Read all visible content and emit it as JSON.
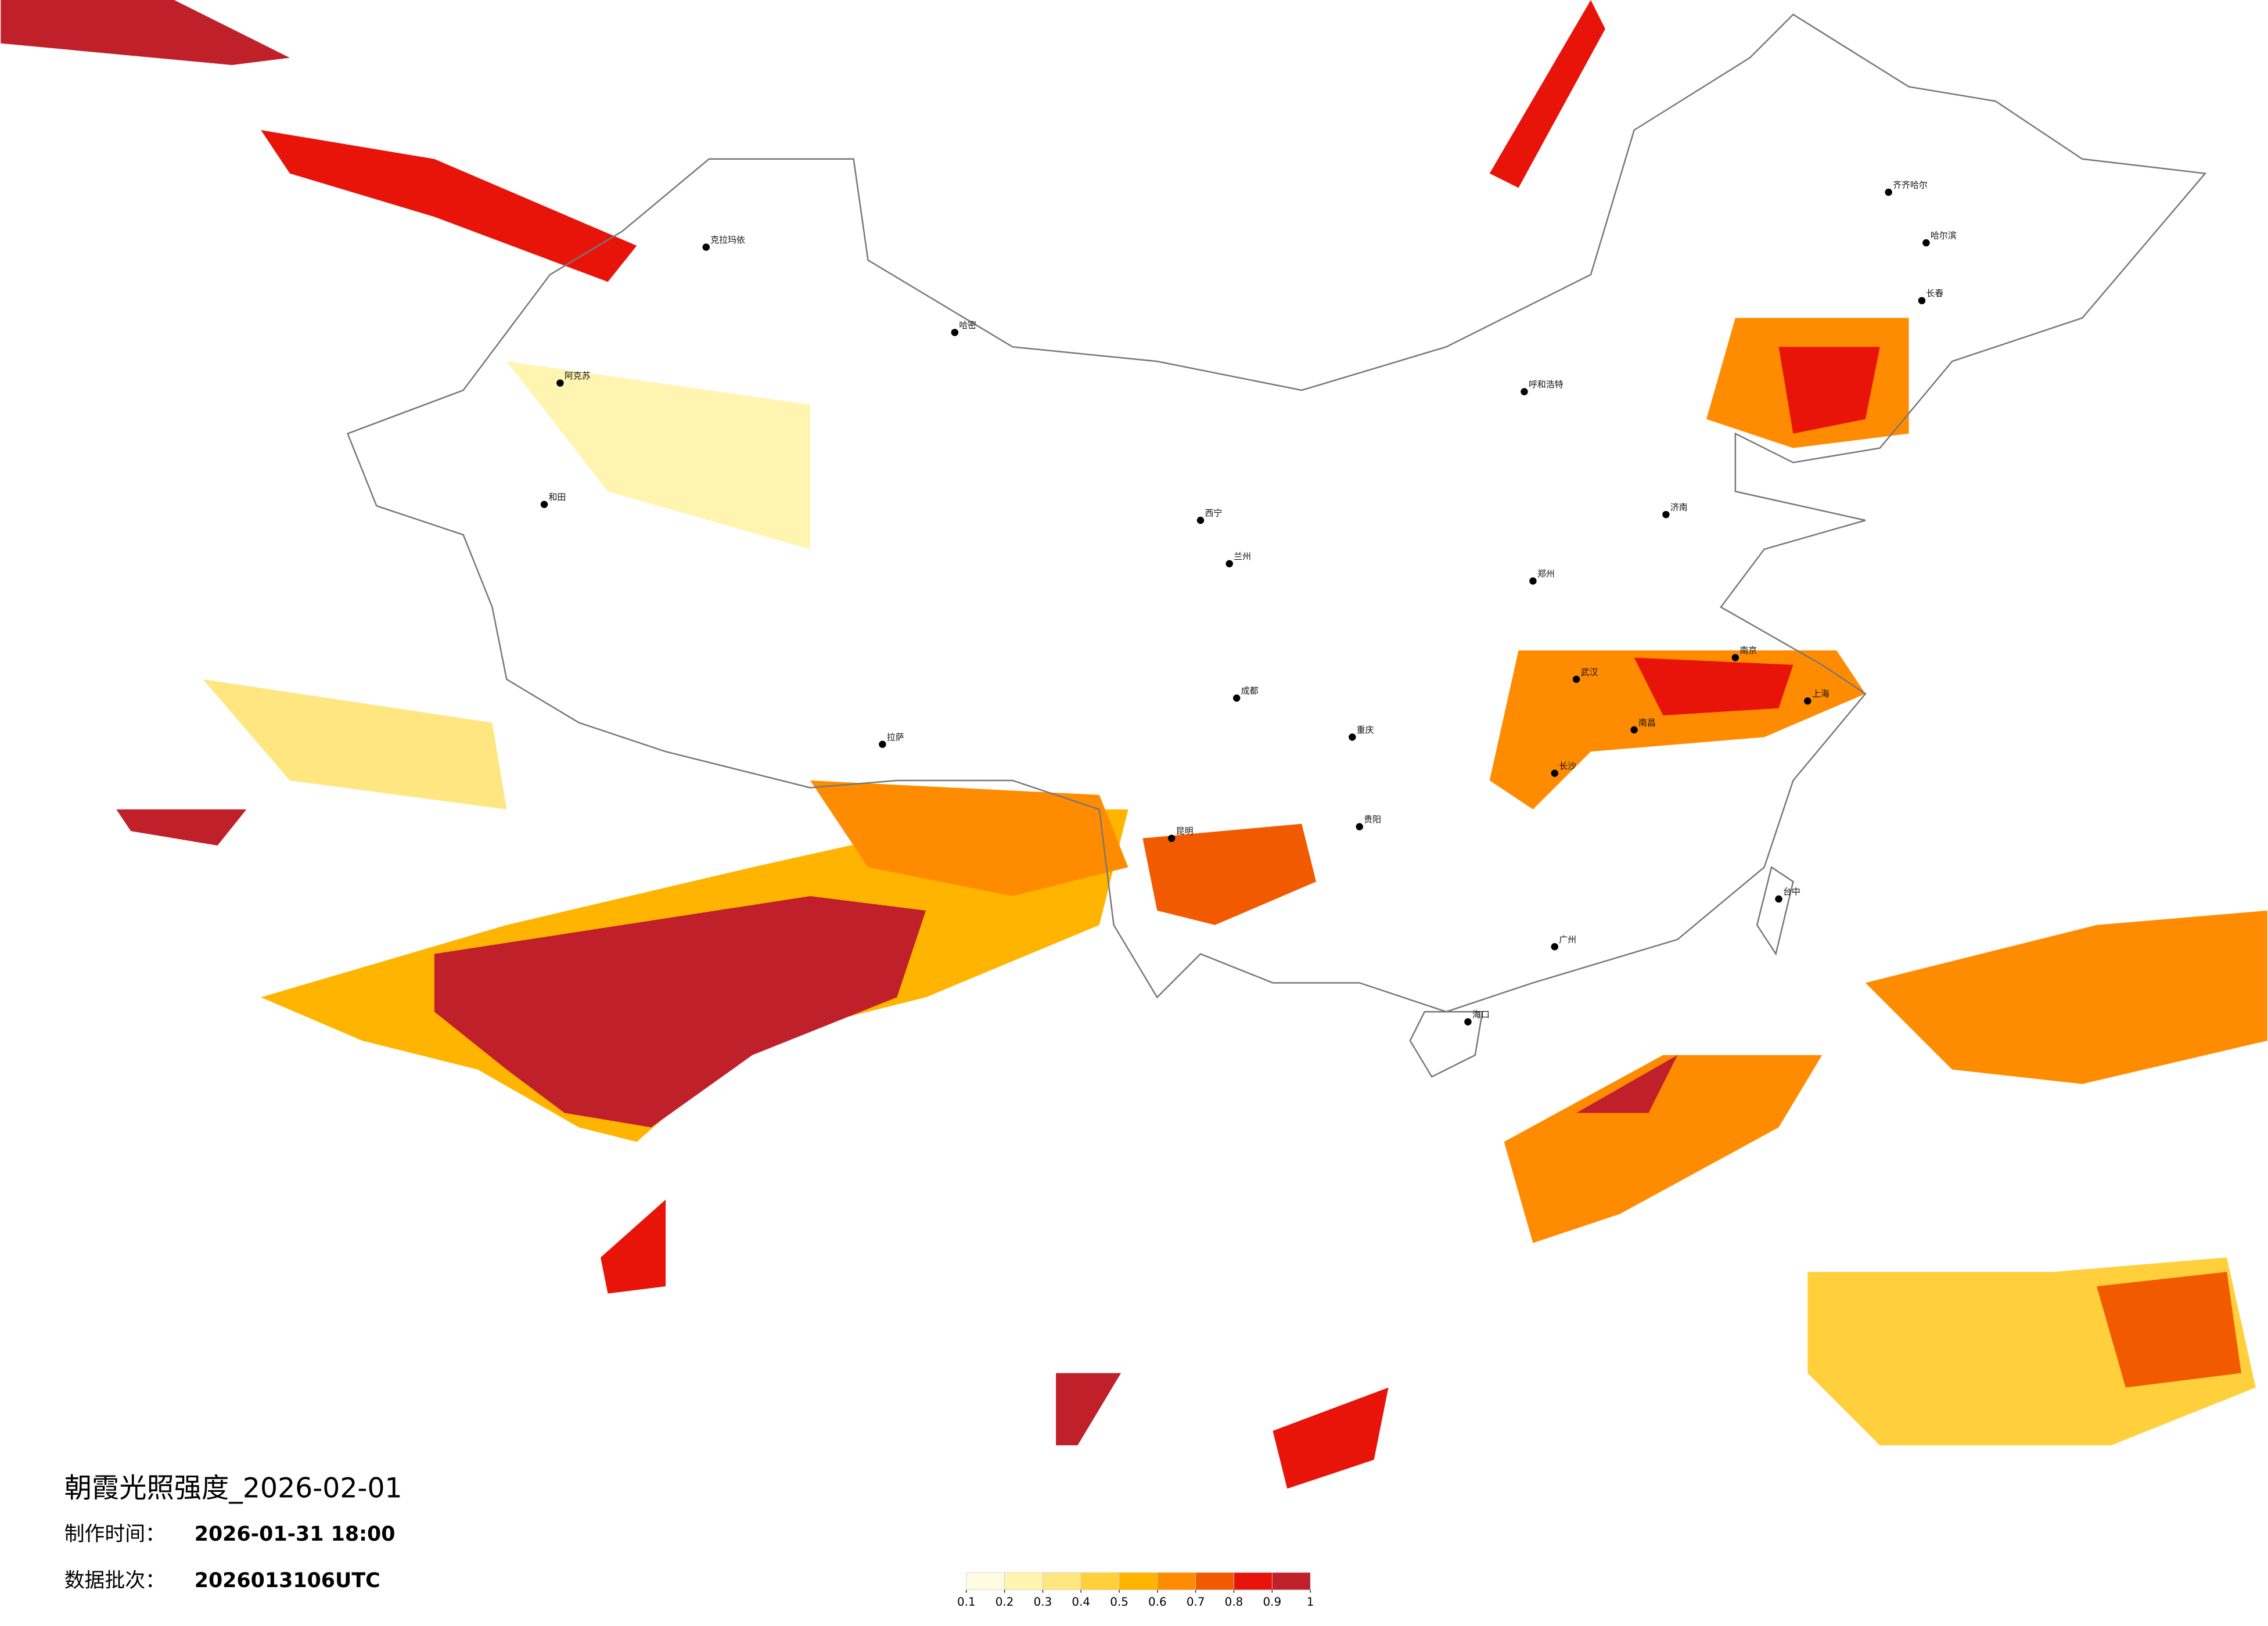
{
  "header": {
    "title": "朝霞光照强度_2026-02-01",
    "made_label": "制作时间：",
    "made_value": "2026-01-31 18:00",
    "batch_label": "数据批次：",
    "batch_value": "2026013106UTC"
  },
  "legend": {
    "colors": [
      "#fffbe3",
      "#fff4b0",
      "#ffe680",
      "#ffd03c",
      "#ffb400",
      "#ff8c00",
      "#f25a00",
      "#e8140a",
      "#c0202a"
    ],
    "ticks": [
      0.1,
      0.2,
      0.3,
      0.4,
      0.5,
      0.6,
      0.7,
      0.8,
      0.9,
      1
    ]
  },
  "cities": [
    {
      "name": "克拉玛依"
    },
    {
      "name": "阿克苏"
    },
    {
      "name": "和田"
    },
    {
      "name": "哈密"
    },
    {
      "name": "拉萨"
    },
    {
      "name": "西宁"
    },
    {
      "name": "兰州"
    },
    {
      "name": "呼和浩特"
    },
    {
      "name": "齐齐哈尔"
    },
    {
      "name": "哈尔滨"
    },
    {
      "name": "长春"
    },
    {
      "name": "济南"
    },
    {
      "name": "郑州"
    },
    {
      "name": "武汉"
    },
    {
      "name": "南京"
    },
    {
      "name": "上海"
    },
    {
      "name": "成都"
    },
    {
      "name": "重庆"
    },
    {
      "name": "昆明"
    },
    {
      "name": "贵阳"
    },
    {
      "name": "广州"
    },
    {
      "name": "台中"
    },
    {
      "name": "海口"
    },
    {
      "name": "长沙"
    },
    {
      "name": "南昌"
    }
  ]
}
